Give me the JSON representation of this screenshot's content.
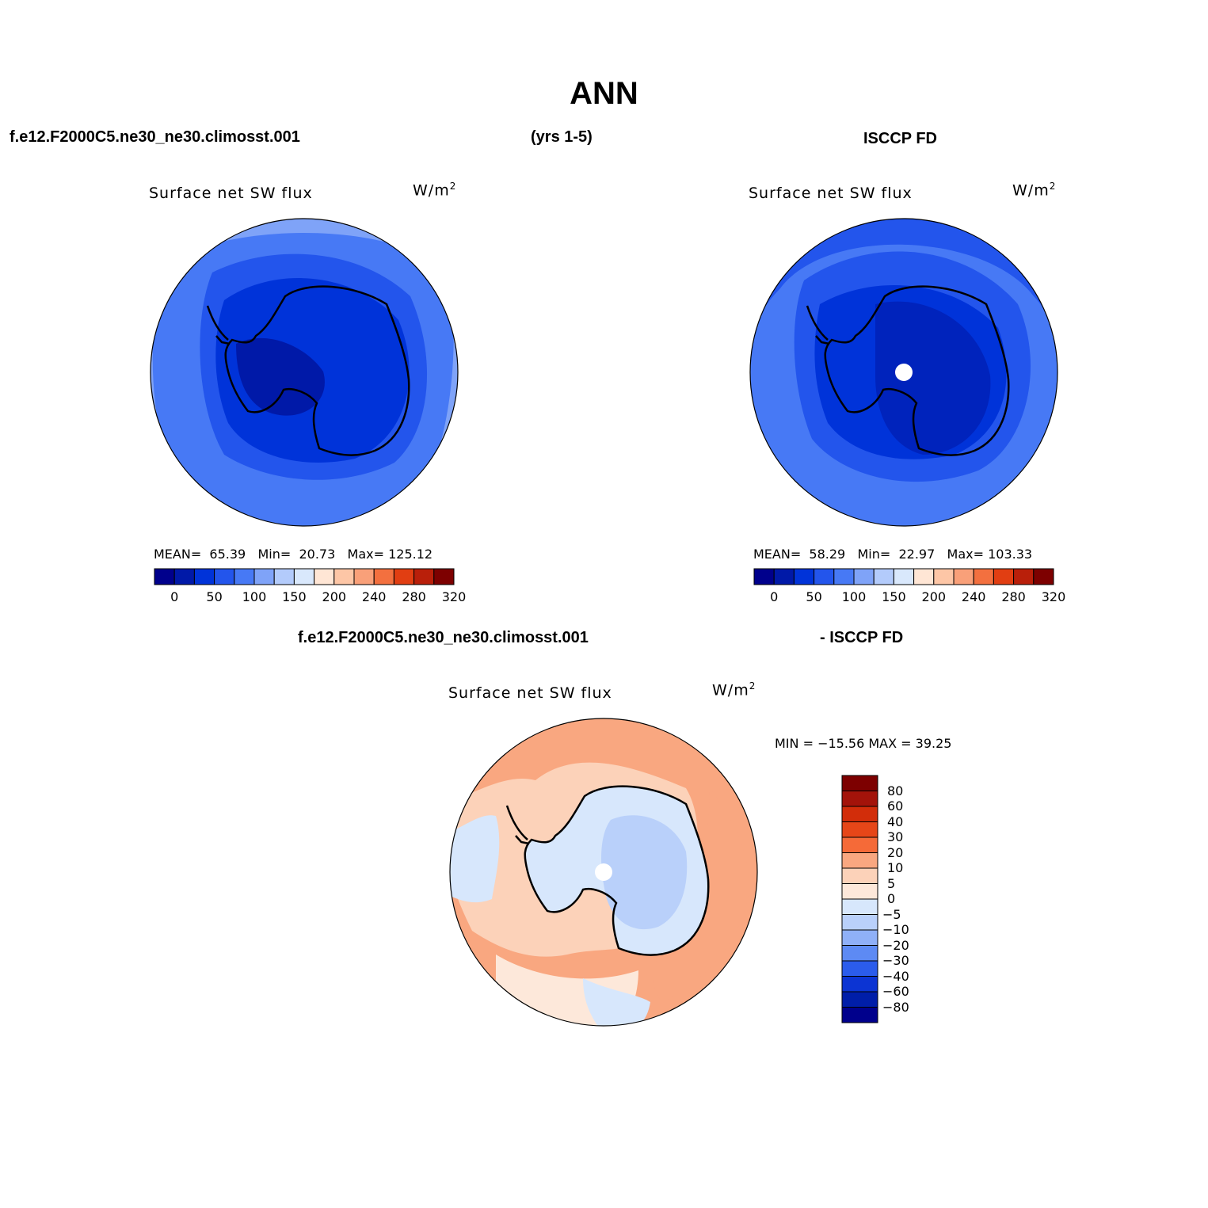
{
  "title": "ANN",
  "header": {
    "case_name": "f.e12.F2000C5.ne30_ne30.climosst.001",
    "years": "(yrs 1-5)",
    "obs_name": "ISCCP FD"
  },
  "panels": [
    {
      "id": "model",
      "variable": "Surface net SW flux",
      "units_base": "W/m",
      "units_exp": "2",
      "stats": {
        "mean_label": "MEAN=",
        "mean": "65.39",
        "min_label": "Min=",
        "min": "20.73",
        "max_label": "Max=",
        "max": "125.12"
      },
      "colorbar_ticks": [
        "0",
        "50",
        "100",
        "150",
        "200",
        "240",
        "280",
        "320"
      ]
    },
    {
      "id": "obs",
      "variable": "Surface net SW flux",
      "units_base": "W/m",
      "units_exp": "2",
      "stats": {
        "mean_label": "MEAN=",
        "mean": "58.29",
        "min_label": "Min=",
        "min": "22.97",
        "max_label": "Max=",
        "max": "103.33"
      },
      "colorbar_ticks": [
        "0",
        "50",
        "100",
        "150",
        "200",
        "240",
        "280",
        "320"
      ]
    }
  ],
  "difference": {
    "case_name": "f.e12.F2000C5.ne30_ne30.climosst.001",
    "obs_name": "- ISCCP FD",
    "variable": "Surface net SW flux",
    "units_base": "W/m",
    "units_exp": "2",
    "minmax": "MIN = −15.56 MAX =   39.25",
    "colorbar_ticks": [
      "80",
      "60",
      "40",
      "30",
      "20",
      "10",
      "5",
      "0",
      "−5",
      "−10",
      "−20",
      "−30",
      "−40",
      "−60",
      "−80"
    ]
  },
  "colors": {
    "abs_scale": [
      "#00008c",
      "#0019a8",
      "#0033d9",
      "#2355ec",
      "#4779f5",
      "#7fa3f8",
      "#b3cbfb",
      "#d9e8fc",
      "#ffe6d5",
      "#fdc6a6",
      "#f9a079",
      "#f3703f",
      "#e13e12",
      "#b91f0a",
      "#7d0000"
    ],
    "diff_scale": [
      "#7d0000",
      "#a3130a",
      "#d22d0a",
      "#e64618",
      "#f56a38",
      "#f9a780",
      "#fcd2b9",
      "#fde8da",
      "#d7e7fc",
      "#b9d0fa",
      "#8fb0f8",
      "#5d8af4",
      "#2b5cec",
      "#0c34d3",
      "#001ea9",
      "#00008c"
    ],
    "coast": "#000000"
  }
}
